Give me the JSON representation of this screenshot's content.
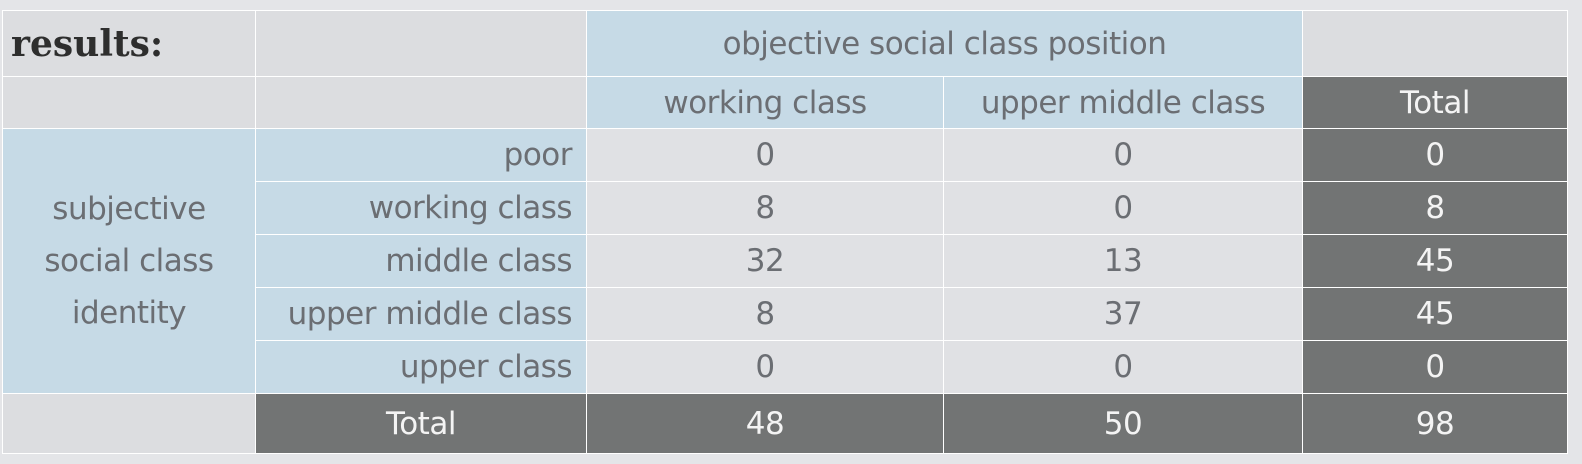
{
  "heading": "results:",
  "column_group_label": "objective social class position",
  "row_group_label_lines": [
    "subjective",
    "social class",
    "identity"
  ],
  "columns": [
    "working class",
    "upper middle class",
    "Total"
  ],
  "rows": [
    {
      "label": "poor",
      "working_class": "0",
      "upper_middle_class": "0",
      "total": "0"
    },
    {
      "label": "working class",
      "working_class": "8",
      "upper_middle_class": "0",
      "total": "8"
    },
    {
      "label": "middle class",
      "working_class": "32",
      "upper_middle_class": "13",
      "total": "45"
    },
    {
      "label": "upper middle class",
      "working_class": "8",
      "upper_middle_class": "37",
      "total": "45"
    },
    {
      "label": "upper class",
      "working_class": "0",
      "upper_middle_class": "0",
      "total": "0"
    }
  ],
  "totals_row": {
    "label": "Total",
    "working_class": "48",
    "upper_middle_class": "50",
    "total": "98"
  },
  "colors": {
    "header_blue": "#c6dae6",
    "total_dark": "#727474",
    "background": "#e4e5e8"
  }
}
